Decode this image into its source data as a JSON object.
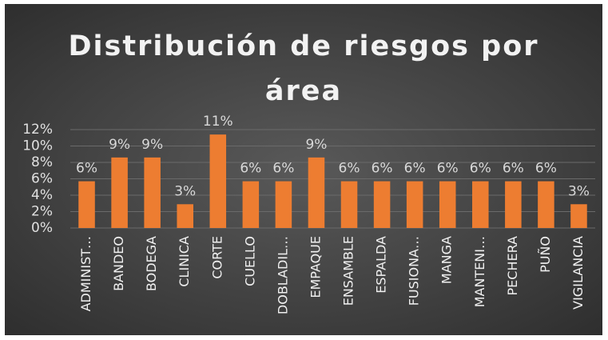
{
  "chart_data": {
    "type": "bar",
    "title": "Distribución de riesgos por área",
    "categories": [
      "ADMINIST…",
      "BANDEO",
      "BODEGA",
      "CLINICA",
      "CORTE",
      "CUELLO",
      "DOBLADIL…",
      "EMPAQUE",
      "ENSAMBLE",
      "ESPALDA",
      "FUSIONA…",
      "MANGA",
      "MANTENI…",
      "PECHERA",
      "PUÑO",
      "VIGILANCIA"
    ],
    "values": [
      5.7,
      8.6,
      8.6,
      2.9,
      11.4,
      5.7,
      5.7,
      8.6,
      5.7,
      5.7,
      5.7,
      5.7,
      5.7,
      5.7,
      5.7,
      2.9
    ],
    "value_labels": [
      "6%",
      "9%",
      "9%",
      "3%",
      "11%",
      "6%",
      "6%",
      "9%",
      "6%",
      "6%",
      "6%",
      "6%",
      "6%",
      "6%",
      "6%",
      "3%"
    ],
    "color": "#ed7d31",
    "ylim": [
      0,
      12
    ],
    "yticks": [
      {
        "value": 0,
        "label": "0%"
      },
      {
        "value": 2,
        "label": "2%"
      },
      {
        "value": 4,
        "label": "4%"
      },
      {
        "value": 6,
        "label": "6%"
      },
      {
        "value": 8,
        "label": "8%"
      },
      {
        "value": 10,
        "label": "10%"
      },
      {
        "value": 12,
        "label": "12%"
      }
    ],
    "grid": true
  }
}
